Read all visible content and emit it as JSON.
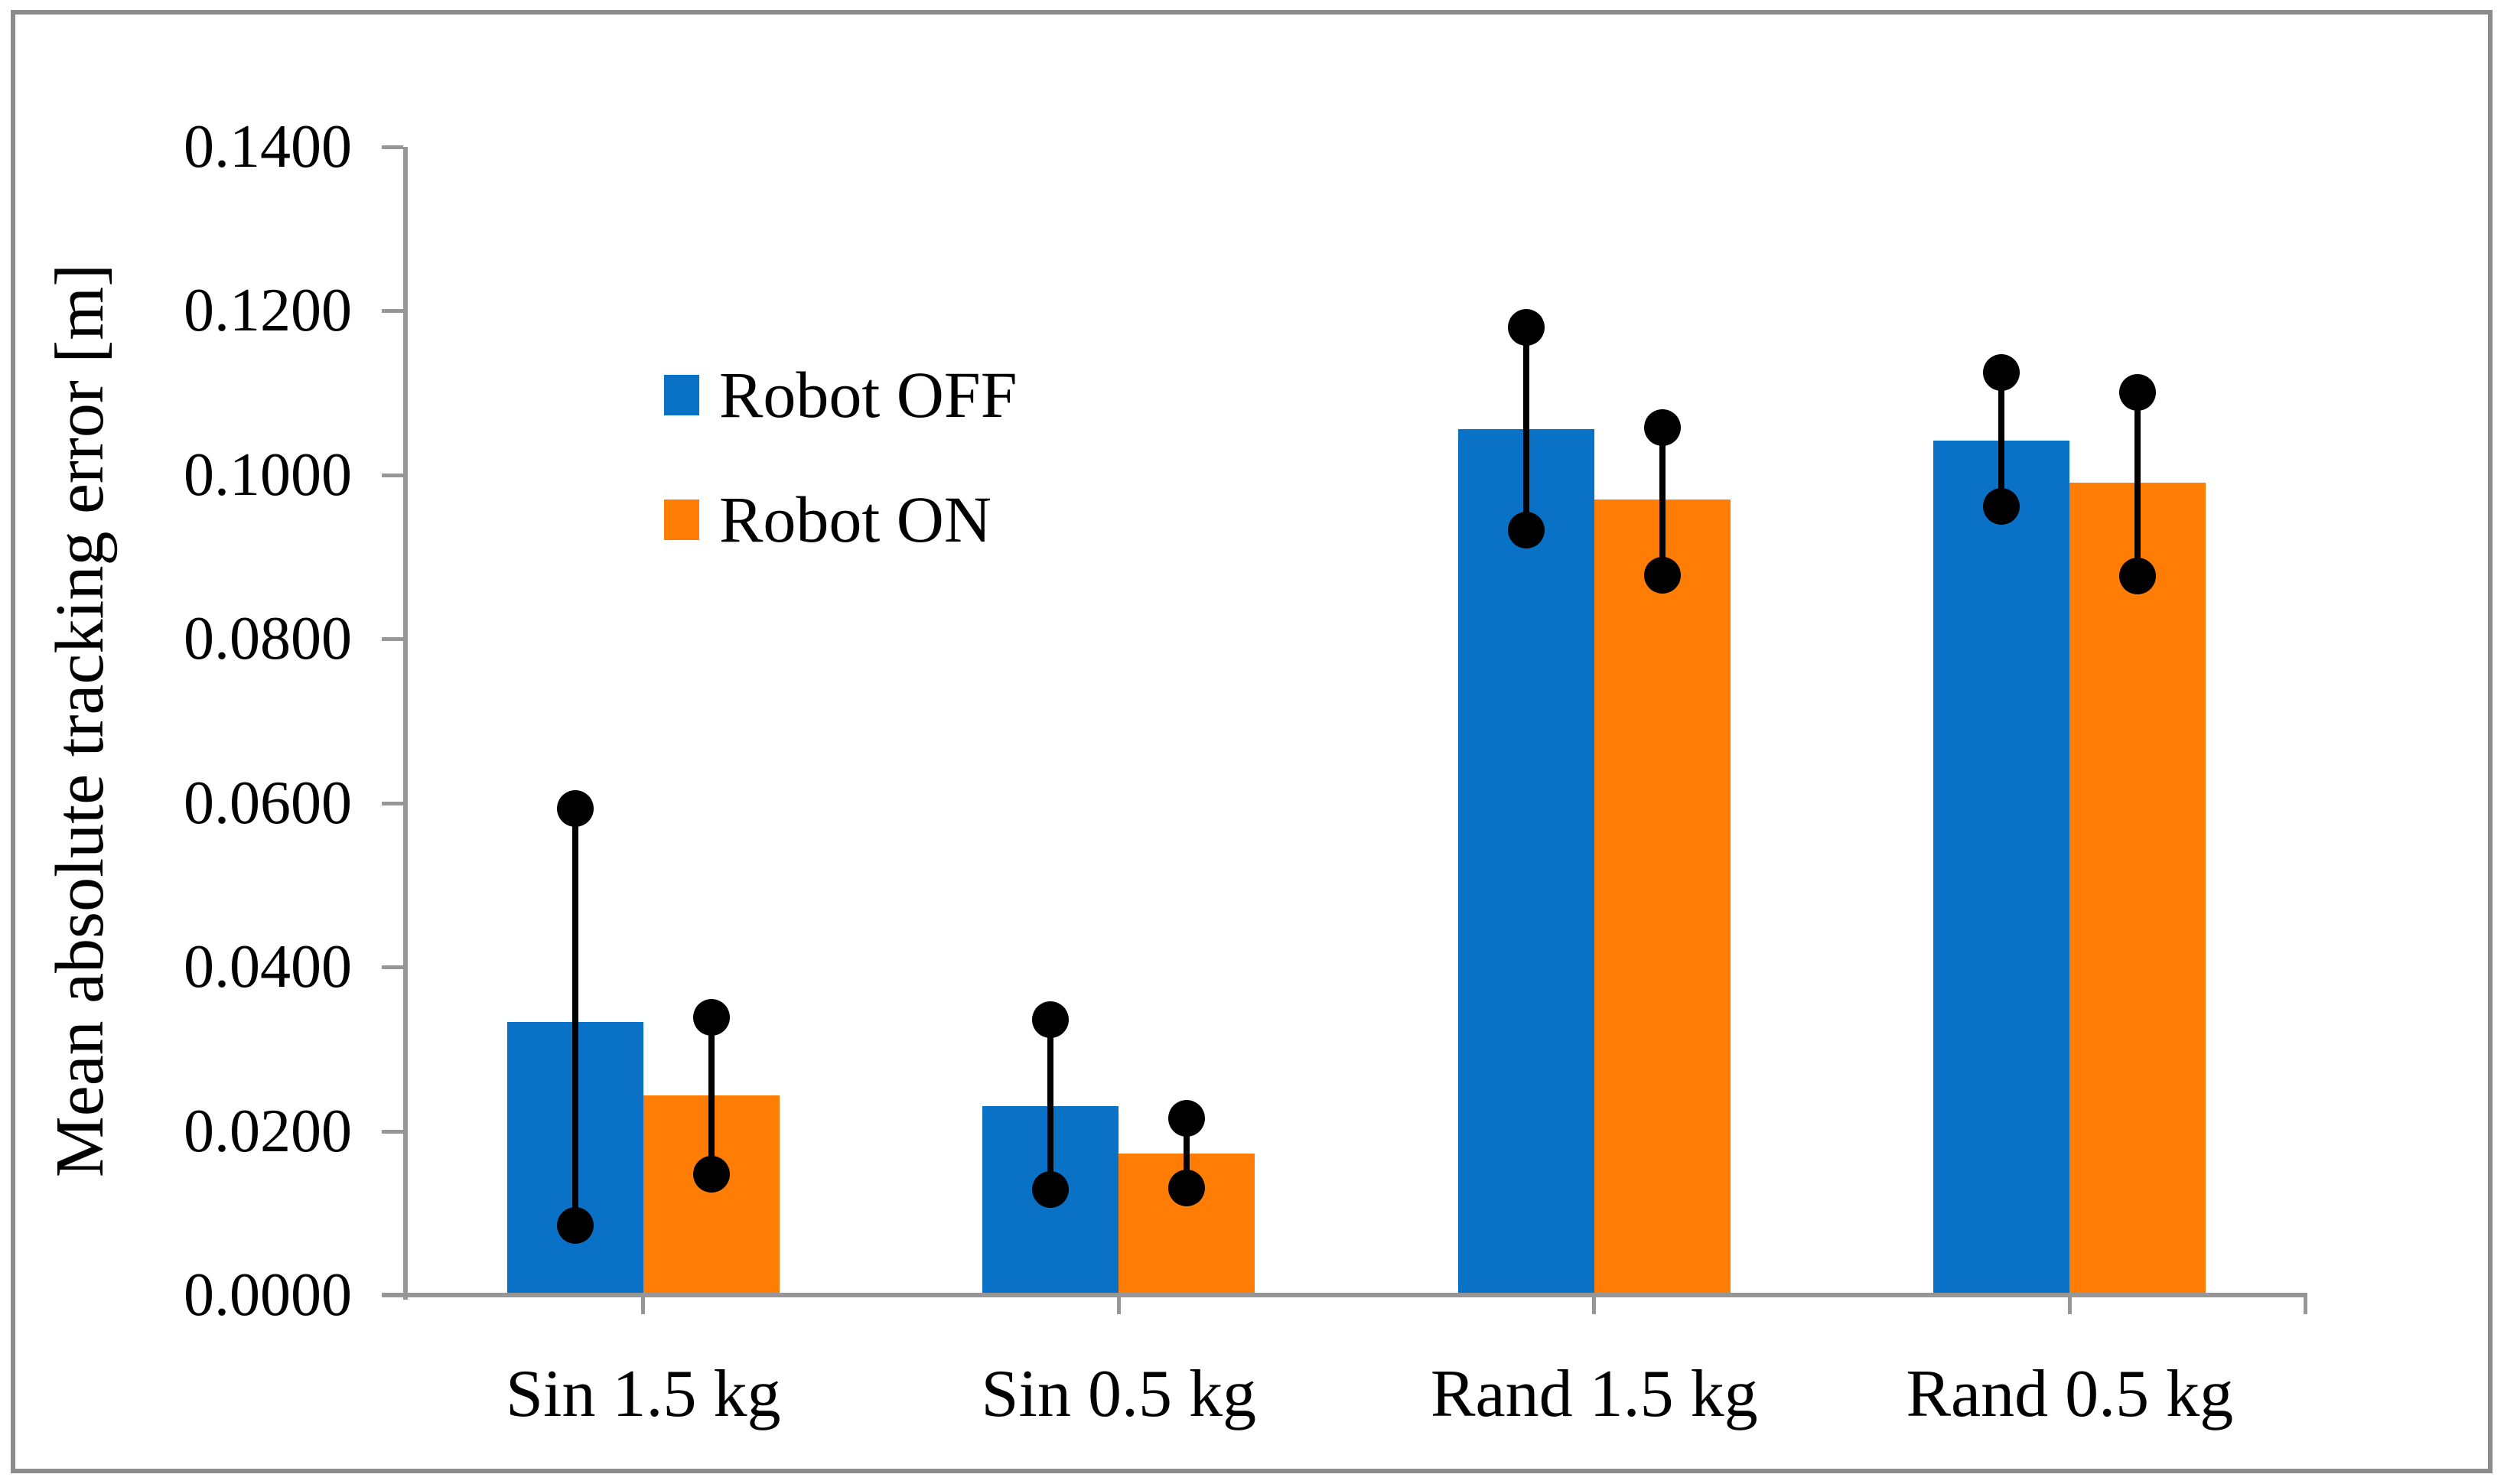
{
  "figure": {
    "background": "#ffffff",
    "border_color": "#8c8c8c"
  },
  "chart_data": {
    "type": "bar",
    "title": "",
    "xlabel": "",
    "ylabel": "Mean absolute tracking error [m]",
    "ylim": [
      0,
      0.14
    ],
    "y_tick_labels": [
      "0.0000",
      "0.0200",
      "0.0400",
      "0.0600",
      "0.0800",
      "0.1000",
      "0.1200",
      "0.1400"
    ],
    "categories": [
      "Sin 1.5 kg",
      "Sin 0.5 kg",
      "Rand 1.5 kg",
      "Rand 0.5 kg"
    ],
    "grid": false,
    "legend_position": "inside upper-left",
    "error_bar_style": "range whiskers with filled circle caps",
    "axis_color": "#969696",
    "error_color": "#000000",
    "series": [
      {
        "name": "Robot OFF",
        "color": "#0a72c6",
        "values": [
          0.0333,
          0.023,
          0.1056,
          0.1042
        ],
        "error_low": [
          0.0085,
          0.0129,
          0.0933,
          0.0962
        ],
        "error_high": [
          0.0593,
          0.0336,
          0.118,
          0.1125
        ]
      },
      {
        "name": "Robot ON",
        "color": "#ff7c05",
        "values": [
          0.0243,
          0.0173,
          0.097,
          0.0991
        ],
        "error_low": [
          0.0147,
          0.0131,
          0.0878,
          0.0877
        ],
        "error_high": [
          0.0339,
          0.0215,
          0.1058,
          0.1101
        ]
      }
    ]
  }
}
